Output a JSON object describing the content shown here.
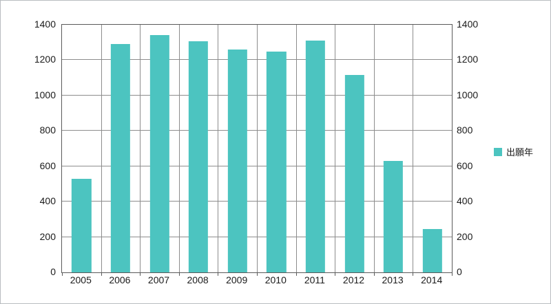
{
  "chart_data": {
    "type": "bar",
    "categories": [
      "2005",
      "2006",
      "2007",
      "2008",
      "2009",
      "2010",
      "2011",
      "2012",
      "2013",
      "2014"
    ],
    "values": [
      530,
      1290,
      1340,
      1305,
      1260,
      1250,
      1310,
      1115,
      630,
      245
    ],
    "title": "",
    "xlabel": "",
    "ylabel": "",
    "ylim": [
      0,
      1400
    ],
    "ytick_step": 200,
    "grid": true,
    "bar_color": "#4cc4c0",
    "legend_position": "right",
    "legend": [
      {
        "label": "出願年",
        "color": "#4cc4c0"
      }
    ]
  }
}
